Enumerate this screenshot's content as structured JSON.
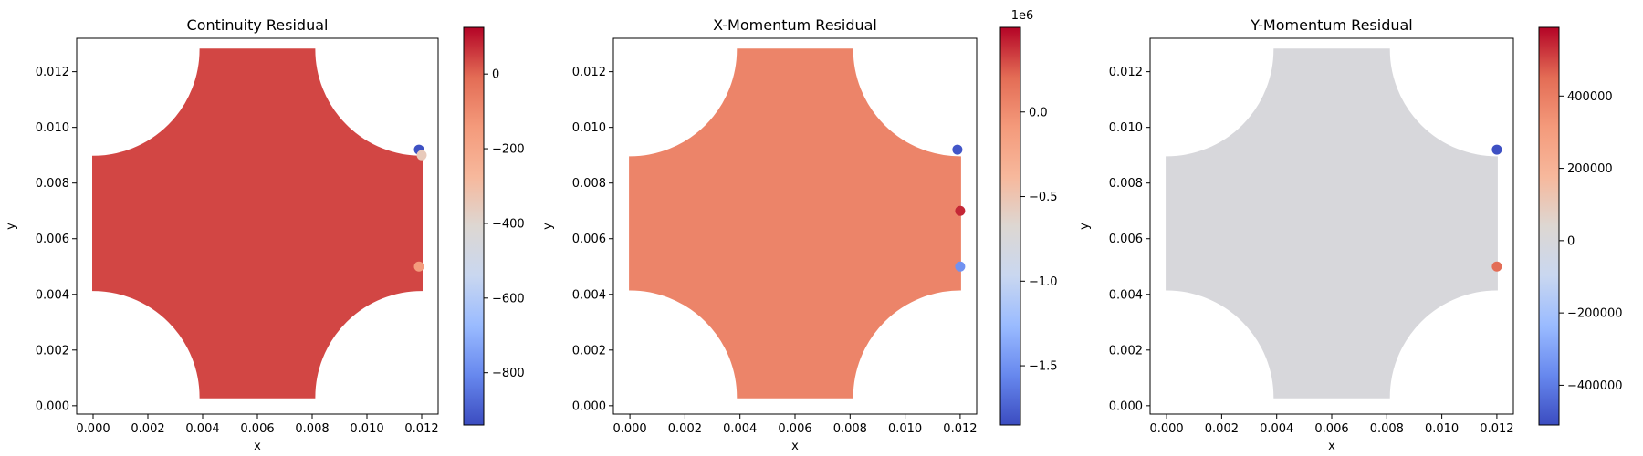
{
  "colormap": {
    "name": "coolwarm",
    "stops": [
      "#3b4cc0",
      "#6788ee",
      "#9abbff",
      "#c9d7f0",
      "#ddd7d2",
      "#f7b89c",
      "#f49a7b",
      "#e36c55",
      "#b40426"
    ]
  },
  "chart_data": [
    {
      "type": "scatter",
      "title": "Continuity Residual",
      "xlabel": "x",
      "ylabel": "y",
      "xlim": [
        -0.0006,
        0.0126
      ],
      "ylim": [
        -0.0003,
        0.0132
      ],
      "xticks": [
        "0.000",
        "0.002",
        "0.004",
        "0.006",
        "0.008",
        "0.010",
        "0.012"
      ],
      "yticks": [
        "0.000",
        "0.002",
        "0.004",
        "0.006",
        "0.008",
        "0.010",
        "0.012"
      ],
      "domain": {
        "shape": "square with four quarter-circle notches",
        "x_range": [
          0.0,
          0.012
        ],
        "y_range": [
          0.0003,
          0.0128
        ],
        "bulk_value": 40
      },
      "hot_spots": [
        {
          "x": 0.0119,
          "y": 0.0092,
          "value": -930
        },
        {
          "x": 0.012,
          "y": 0.009,
          "value": -350
        },
        {
          "x": 0.0119,
          "y": 0.005,
          "value": -150
        }
      ],
      "colorbar": {
        "range": [
          -940,
          125
        ],
        "ticks": [
          0,
          -200,
          -400,
          -600,
          -800
        ],
        "tick_labels": [
          "0",
          "−200",
          "−400",
          "−600",
          "−800"
        ],
        "offset_label": ""
      }
    },
    {
      "type": "scatter",
      "title": "X-Momentum Residual",
      "xlabel": "x",
      "ylabel": "y",
      "xlim": [
        -0.0006,
        0.0126
      ],
      "ylim": [
        -0.0003,
        0.0132
      ],
      "xticks": [
        "0.000",
        "0.002",
        "0.004",
        "0.006",
        "0.008",
        "0.010",
        "0.012"
      ],
      "yticks": [
        "0.000",
        "0.002",
        "0.004",
        "0.006",
        "0.008",
        "0.010",
        "0.012"
      ],
      "domain": {
        "shape": "square with four quarter-circle notches",
        "x_range": [
          0.0,
          0.012
        ],
        "y_range": [
          0.0003,
          0.0128
        ],
        "bulk_value": 50000
      },
      "hot_spots": [
        {
          "x": 0.0119,
          "y": 0.0092,
          "value": -1800000
        },
        {
          "x": 0.012,
          "y": 0.005,
          "value": -1500000
        },
        {
          "x": 0.012,
          "y": 0.007,
          "value": 400000
        }
      ],
      "colorbar": {
        "range": [
          -1.85,
          0.5
        ],
        "ticks": [
          0.0,
          -0.5,
          -1.0,
          -1.5
        ],
        "tick_labels": [
          "0.0",
          "−0.5",
          "−1.0",
          "−1.5"
        ],
        "offset_label": "1e6"
      }
    },
    {
      "type": "scatter",
      "title": "Y-Momentum Residual",
      "xlabel": "x",
      "ylabel": "y",
      "xlim": [
        -0.0006,
        0.0126
      ],
      "ylim": [
        -0.0003,
        0.0132
      ],
      "xticks": [
        "0.000",
        "0.002",
        "0.004",
        "0.006",
        "0.008",
        "0.010",
        "0.012"
      ],
      "yticks": [
        "0.000",
        "0.002",
        "0.004",
        "0.006",
        "0.008",
        "0.010",
        "0.012"
      ],
      "domain": {
        "shape": "square with four quarter-circle notches",
        "x_range": [
          0.0,
          0.012
        ],
        "y_range": [
          0.0003,
          0.0128
        ],
        "bulk_value": 0
      },
      "hot_spots": [
        {
          "x": 0.012,
          "y": 0.0092,
          "value": -500000
        },
        {
          "x": 0.012,
          "y": 0.005,
          "value": 450000
        }
      ],
      "colorbar": {
        "range": [
          -510000,
          590000
        ],
        "ticks": [
          400000,
          200000,
          0,
          -200000,
          -400000
        ],
        "tick_labels": [
          "400000",
          "200000",
          "0",
          "−200000",
          "−400000"
        ],
        "offset_label": ""
      }
    }
  ]
}
